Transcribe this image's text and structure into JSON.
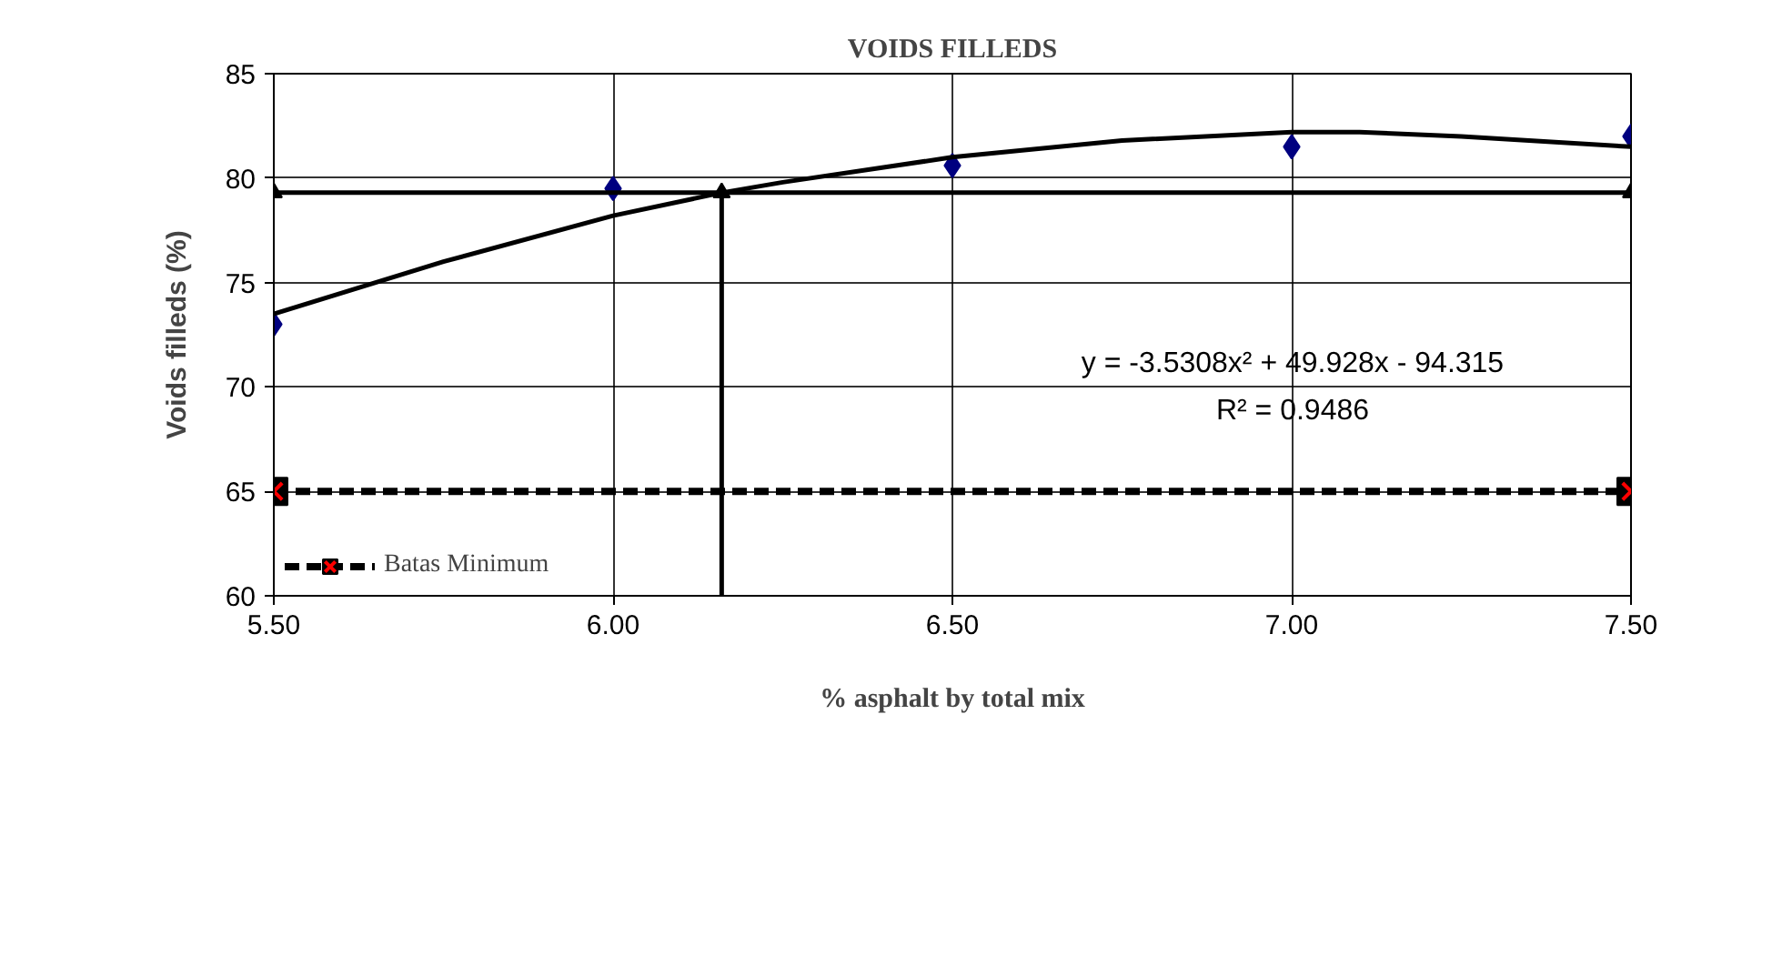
{
  "chart_data": {
    "type": "scatter",
    "title": "VOIDS FILLEDS",
    "xlabel": "% asphalt by total mix",
    "ylabel": "Voids filleds (%)",
    "xlim": [
      5.5,
      7.5
    ],
    "xticks": [
      {
        "value": 5.5,
        "label": "5.50"
      },
      {
        "value": 6.0,
        "label": "6.00"
      },
      {
        "value": 6.5,
        "label": "6.50"
      },
      {
        "value": 7.0,
        "label": "7.00"
      },
      {
        "value": 7.5,
        "label": "7.50"
      }
    ],
    "ylim": [
      60,
      85
    ],
    "yticks": [
      60,
      65,
      70,
      75,
      80,
      85
    ],
    "grid": true,
    "legend": "bottom left",
    "annotations": [
      "y = -3.5308x² + 49.928x - 94.315",
      "R² = 0.9486"
    ],
    "series": [
      {
        "type": "scatter",
        "marker": "diamond",
        "color": "#000080",
        "x": [
          5.5,
          6.0,
          6.5,
          7.0,
          7.5
        ],
        "values": [
          73.0,
          79.5,
          80.6,
          81.5,
          82.0
        ]
      },
      {
        "type": "line",
        "marker": "none",
        "color": "#000000",
        "x": [
          5.5,
          5.75,
          6.0,
          6.16,
          6.25,
          6.5,
          6.75,
          7.0,
          7.1,
          7.25,
          7.5
        ],
        "values": [
          73.5,
          76.0,
          78.2,
          79.3,
          79.8,
          81.0,
          81.8,
          82.2,
          82.2,
          82.0,
          81.5
        ]
      },
      {
        "type": "line",
        "marker": "triangle",
        "color": "#000000",
        "x": [
          5.5,
          6.16,
          7.5
        ],
        "values": [
          79.3,
          79.3,
          79.3
        ]
      },
      {
        "type": "line",
        "marker": "none",
        "color": "#000000",
        "x": [
          6.16,
          6.16
        ],
        "values": [
          60,
          79.3
        ]
      },
      {
        "type": "line",
        "name": "Batas Minimum",
        "marker": "square",
        "line_style": "dashed",
        "color": "#000000",
        "x": [
          5.5,
          7.5
        ],
        "values": [
          65,
          65
        ]
      }
    ]
  }
}
